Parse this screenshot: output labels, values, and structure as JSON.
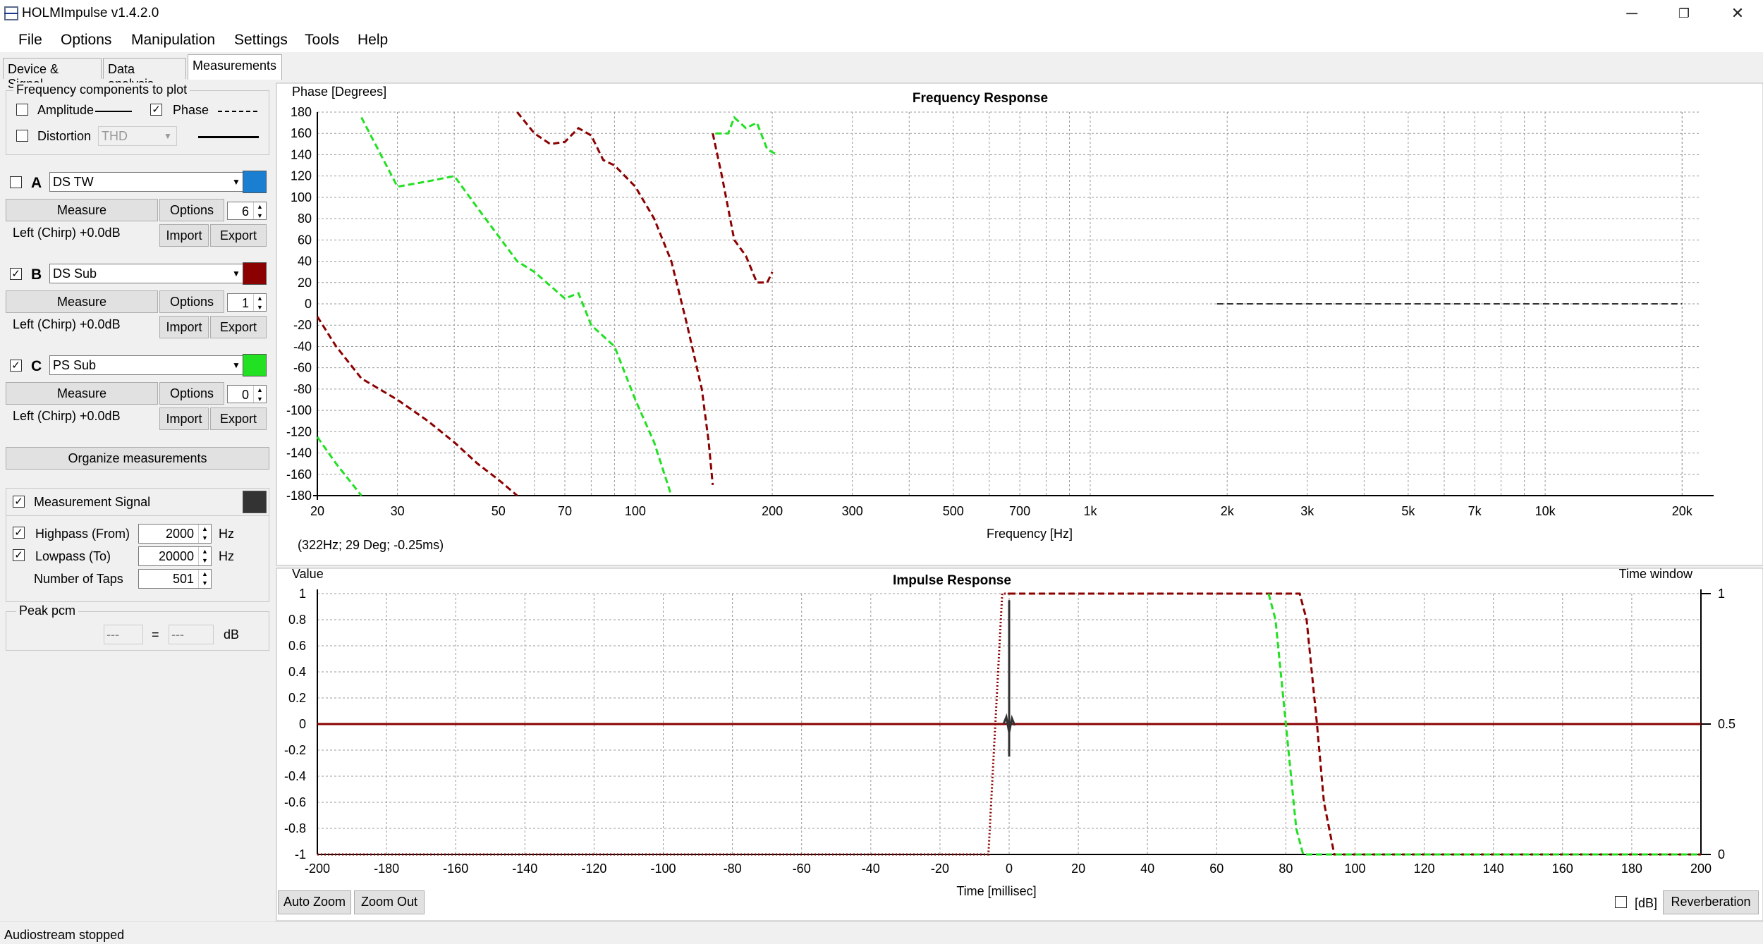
{
  "window": {
    "title": "HOLMImpulse  v1.4.2.0",
    "min": "─",
    "restore": "❐",
    "close": "✕"
  },
  "menu": [
    "File",
    "Options",
    "Manipulation",
    "Settings",
    "Tools",
    "Help"
  ],
  "tabs": [
    "Device & Signal",
    "Data analysis",
    "Measurements"
  ],
  "freq_group": {
    "title": "Frequency components to plot",
    "amplitude": "Amplitude",
    "phase": "Phase",
    "distortion": "Distortion",
    "thd": "THD",
    "amplitude_checked": false,
    "phase_checked": true,
    "distortion_checked": false
  },
  "channels": [
    {
      "letter": "A",
      "checked": false,
      "name": "DS TW",
      "color": "#1a7fd0",
      "measure": "Measure",
      "options": "Options",
      "spin": "6",
      "info": "Left (Chirp) +0.0dB",
      "import": "Import",
      "export": "Export"
    },
    {
      "letter": "B",
      "checked": true,
      "name": "DS Sub",
      "color": "#8b0000",
      "measure": "Measure",
      "options": "Options",
      "spin": "1",
      "info": "Left (Chirp) +0.0dB",
      "import": "Import",
      "export": "Export"
    },
    {
      "letter": "C",
      "checked": true,
      "name": "PS Sub",
      "color": "#22e022",
      "measure": "Measure",
      "options": "Options",
      "spin": "0",
      "info": "Left (Chirp) +0.0dB",
      "import": "Import",
      "export": "Export"
    }
  ],
  "organize": "Organize measurements",
  "signal": {
    "label": "Measurement Signal",
    "checked": true,
    "color": "#333333",
    "highpass": "Highpass (From)",
    "highpass_value": "2000",
    "lowpass": "Lowpass (To)",
    "lowpass_value": "20000",
    "taps": "Number of Taps",
    "taps_value": "501",
    "hz": "Hz"
  },
  "peak": {
    "title": "Peak pcm",
    "v1": "---",
    "eq": "=",
    "v2": "---",
    "unit": "dB"
  },
  "freq_plot": {
    "title": "Frequency Response",
    "ylabel": "Phase [Degrees]",
    "xlabel": "Frequency [Hz]",
    "cursor": "(322Hz; 29 Deg; -0.25ms)"
  },
  "impulse_plot": {
    "title": "Impulse Response",
    "ylabel": "Value",
    "xlabel": "Time [millisec]",
    "right_label": "Time window",
    "auto_zoom": "Auto Zoom",
    "zoom_out": "Zoom Out",
    "db": "[dB]",
    "reverb": "Reverberation"
  },
  "status": "Audiostream stopped",
  "chart_data": [
    {
      "type": "line",
      "title": "Frequency Response",
      "xlabel": "Frequency [Hz]",
      "ylabel": "Phase [Degrees]",
      "xscale": "log",
      "xlim": [
        20,
        22000
      ],
      "ylim": [
        -180,
        180
      ],
      "x_ticks": [
        "20",
        "30",
        "50",
        "70",
        "100",
        "200",
        "300",
        "500",
        "700",
        "1k",
        "2k",
        "3k",
        "5k",
        "7k",
        "10k",
        "20k"
      ],
      "y_ticks": [
        "180",
        "160",
        "140",
        "120",
        "100",
        "80",
        "60",
        "40",
        "20",
        "0",
        "-20",
        "-40",
        "-60",
        "-80",
        "-100",
        "-120",
        "-140",
        "-160",
        "-180"
      ],
      "grid": true,
      "series": [
        {
          "color": "#8b0000",
          "style": "dashed",
          "points": [
            [
              20,
              -12
            ],
            [
              22,
              -40
            ],
            [
              25,
              -70
            ],
            [
              30,
              -90
            ],
            [
              35,
              -110
            ],
            [
              40,
              -130
            ],
            [
              45,
              -150
            ],
            [
              50,
              -165
            ],
            [
              55,
              -180
            ]
          ]
        },
        {
          "color": "#8b0000",
          "style": "dashed",
          "points": [
            [
              55,
              180
            ],
            [
              60,
              160
            ],
            [
              65,
              150
            ],
            [
              70,
              152
            ],
            [
              75,
              165
            ],
            [
              80,
              158
            ],
            [
              85,
              135
            ],
            [
              90,
              130
            ],
            [
              100,
              110
            ],
            [
              110,
              80
            ],
            [
              120,
              40
            ],
            [
              130,
              -20
            ],
            [
              140,
              -80
            ],
            [
              145,
              -130
            ],
            [
              148,
              -170
            ]
          ]
        },
        {
          "color": "#8b0000",
          "style": "dashed",
          "points": [
            [
              148,
              160
            ],
            [
              155,
              120
            ],
            [
              165,
              60
            ],
            [
              175,
              45
            ],
            [
              185,
              20
            ],
            [
              195,
              20
            ],
            [
              200,
              30
            ]
          ]
        },
        {
          "color": "#22e022",
          "style": "dashed",
          "points": [
            [
              25,
              175
            ],
            [
              30,
              110
            ],
            [
              35,
              115
            ],
            [
              40,
              120
            ],
            [
              45,
              90
            ],
            [
              55,
              40
            ],
            [
              60,
              30
            ],
            [
              70,
              5
            ],
            [
              75,
              10
            ],
            [
              80,
              -20
            ],
            [
              90,
              -40
            ],
            [
              100,
              -90
            ],
            [
              110,
              -130
            ],
            [
              120,
              -180
            ]
          ]
        },
        {
          "color": "#22e022",
          "style": "dashed",
          "points": [
            [
              150,
              160
            ],
            [
              160,
              160
            ],
            [
              165,
              175
            ],
            [
              175,
              165
            ],
            [
              185,
              170
            ],
            [
              195,
              145
            ],
            [
              205,
              140
            ]
          ]
        },
        {
          "color": "#22e022",
          "style": "dashed",
          "points": [
            [
              20,
              -125
            ],
            [
              22,
              -150
            ],
            [
              25,
              -180
            ]
          ]
        },
        {
          "color": "#333333",
          "style": "dashed",
          "points": [
            [
              1900,
              0
            ],
            [
              20000,
              0
            ]
          ]
        }
      ]
    },
    {
      "type": "line",
      "title": "Impulse Response",
      "xlabel": "Time [millisec]",
      "ylabel": "Value",
      "xlim": [
        -200,
        200
      ],
      "ylim": [
        -1,
        1
      ],
      "x_ticks": [
        "-200",
        "-180",
        "-160",
        "-140",
        "-120",
        "-100",
        "-80",
        "-60",
        "-40",
        "-20",
        "0",
        "20",
        "40",
        "60",
        "80",
        "100",
        "120",
        "140",
        "160",
        "180",
        "200"
      ],
      "y_ticks": [
        "1",
        "0.8",
        "0.6",
        "0.4",
        "0.2",
        "0",
        "-0.2",
        "-0.4",
        "-0.6",
        "-0.8",
        "-1"
      ],
      "y2_ticks": [
        "1",
        "0.5",
        "0"
      ],
      "grid": true,
      "series": [
        {
          "color": "#8b0000",
          "style": "solid",
          "points": [
            [
              -200,
              0
            ],
            [
              200,
              0
            ]
          ]
        },
        {
          "color": "#333333",
          "style": "solid",
          "points": [
            [
              0,
              -0.25
            ],
            [
              0,
              0.95
            ]
          ]
        },
        {
          "color": "#8b0000",
          "style": "dotted",
          "points": [
            [
              -200,
              -1
            ],
            [
              -6,
              -1
            ],
            [
              -4,
              0
            ],
            [
              -2,
              1
            ],
            [
              0,
              1
            ]
          ]
        },
        {
          "color": "#8b0000",
          "style": "dashed",
          "points": [
            [
              0,
              1
            ],
            [
              84,
              1
            ],
            [
              86,
              0.8
            ],
            [
              89,
              0
            ],
            [
              91,
              -0.6
            ],
            [
              94,
              -1
            ],
            [
              200,
              -1
            ]
          ]
        },
        {
          "color": "#22e022",
          "style": "dashed",
          "points": [
            [
              75,
              1
            ],
            [
              77,
              0.8
            ],
            [
              80,
              0
            ],
            [
              83,
              -0.8
            ],
            [
              85,
              -1
            ],
            [
              200,
              -1
            ]
          ]
        }
      ]
    }
  ]
}
